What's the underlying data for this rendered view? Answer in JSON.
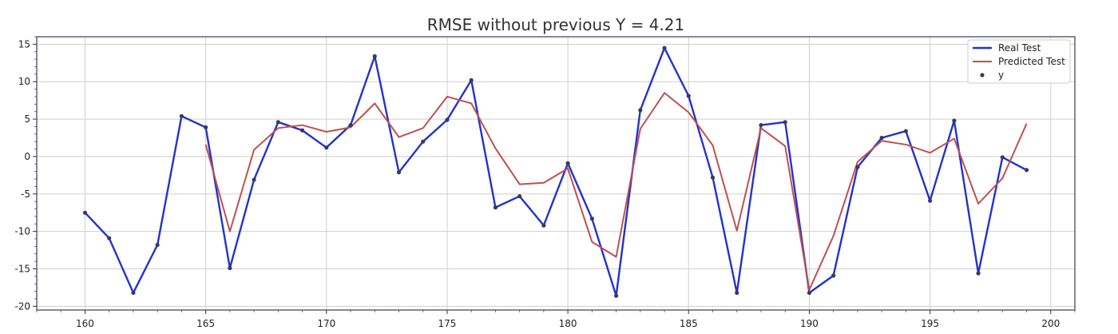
{
  "chart_data": {
    "type": "line",
    "title": "RMSE without previous Y = 4.21",
    "xlabel": "",
    "ylabel": "",
    "xlim": [
      158,
      201
    ],
    "ylim": [
      -20.5,
      16
    ],
    "xticks": [
      160,
      165,
      170,
      175,
      180,
      185,
      190,
      195,
      200
    ],
    "yticks": [
      -20,
      -15,
      -10,
      -5,
      0,
      5,
      10,
      15
    ],
    "grid": true,
    "legend": {
      "placement": "top-right"
    },
    "series": [
      {
        "name": "Real Test",
        "kind": "line",
        "color": "#2233cc",
        "x": [
          160,
          161,
          162,
          163,
          164,
          165,
          166,
          167,
          168,
          169,
          170,
          171,
          172,
          173,
          174,
          175,
          176,
          177,
          178,
          179,
          180,
          181,
          182,
          183,
          184,
          185,
          186,
          187,
          188,
          189,
          190,
          191,
          192,
          193,
          194,
          195,
          196,
          197,
          198,
          199
        ],
        "values": [
          -7.5,
          -10.9,
          -18.2,
          -11.8,
          5.4,
          3.9,
          -14.9,
          -3.1,
          4.6,
          3.5,
          1.2,
          4.2,
          13.4,
          -2.1,
          2.0,
          4.9,
          10.2,
          -6.8,
          -5.3,
          -9.2,
          -0.9,
          -8.3,
          -18.6,
          6.2,
          14.5,
          8.1,
          -2.8,
          -18.2,
          4.2,
          4.6,
          -18.2,
          -15.9,
          -1.4,
          2.5,
          3.4,
          -5.9,
          4.8,
          -15.6,
          -0.1,
          -1.8
        ]
      },
      {
        "name": "Predicted Test",
        "kind": "line",
        "color": "#c05050",
        "x": [
          165,
          166,
          167,
          168,
          169,
          170,
          171,
          172,
          173,
          174,
          175,
          176,
          177,
          178,
          179,
          180,
          181,
          182,
          183,
          184,
          185,
          186,
          187,
          188,
          189,
          190,
          191,
          192,
          193,
          194,
          195,
          196,
          197,
          198,
          199
        ],
        "values": [
          1.6,
          -10.0,
          0.9,
          3.8,
          4.2,
          3.3,
          3.9,
          7.1,
          2.6,
          3.8,
          8.0,
          7.1,
          1.1,
          -3.7,
          -3.5,
          -1.6,
          -11.4,
          -13.4,
          3.7,
          8.5,
          5.9,
          1.5,
          -9.9,
          3.8,
          1.4,
          -17.8,
          -10.6,
          -0.7,
          2.1,
          1.6,
          0.5,
          2.4,
          -6.3,
          -2.9,
          4.4
        ]
      },
      {
        "name": "y",
        "kind": "scatter",
        "color": "#3a3a5a",
        "x": [
          160,
          161,
          162,
          163,
          164,
          165,
          166,
          167,
          168,
          169,
          170,
          171,
          172,
          173,
          174,
          175,
          176,
          177,
          178,
          179,
          180,
          181,
          182,
          183,
          184,
          185,
          186,
          187,
          188,
          189,
          190,
          191,
          192,
          193,
          194,
          195,
          196,
          197,
          198,
          199
        ],
        "values": [
          -7.5,
          -10.9,
          -18.2,
          -11.8,
          5.4,
          3.9,
          -14.9,
          -3.1,
          4.6,
          3.5,
          1.2,
          4.2,
          13.4,
          -2.1,
          2.0,
          4.9,
          10.2,
          -6.8,
          -5.3,
          -9.2,
          -0.9,
          -8.3,
          -18.6,
          6.2,
          14.5,
          8.1,
          -2.8,
          -18.2,
          4.2,
          4.6,
          -18.2,
          -15.9,
          -1.4,
          2.5,
          3.4,
          -5.9,
          4.8,
          -15.6,
          -0.1,
          -1.8
        ]
      }
    ]
  }
}
